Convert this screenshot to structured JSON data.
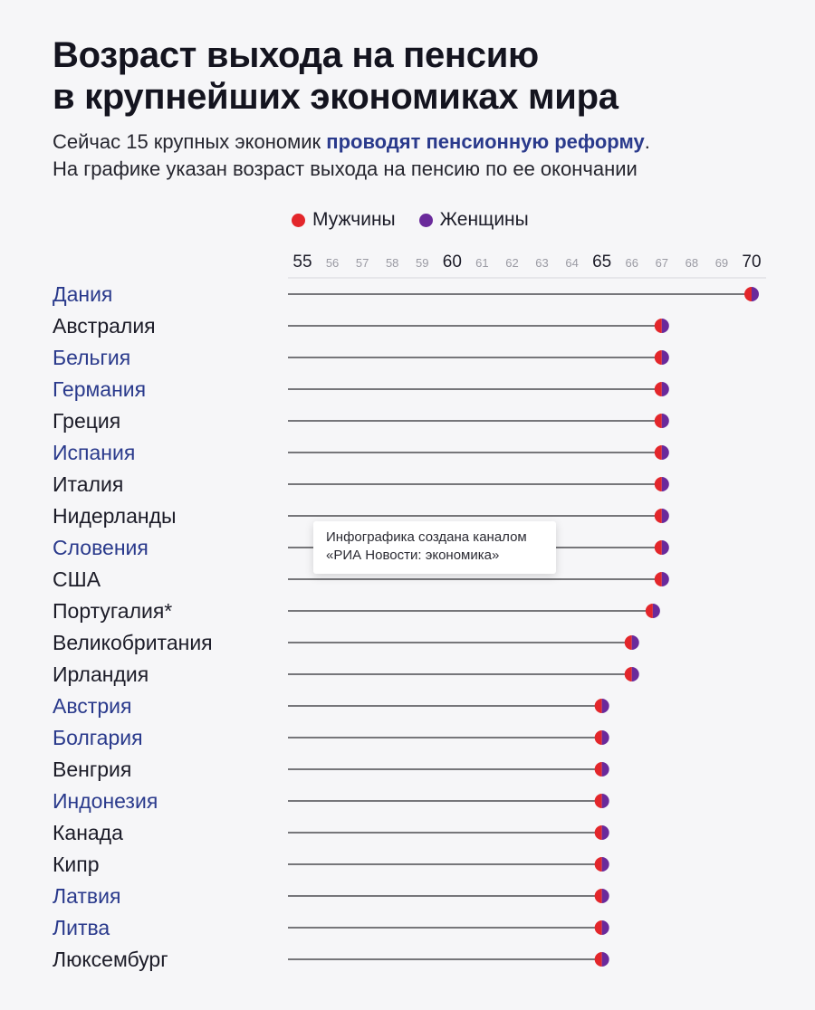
{
  "header": {
    "title_line1": "Возраст выхода на пенсию",
    "title_line2": "в крупнейших экономиках мира",
    "subtitle_pre": "Сейчас 15 крупных экономик ",
    "subtitle_link": "проводят пенсионную реформу",
    "subtitle_post": ".",
    "subtitle_line2": "На графике указан возраст выхода на пенсию по ее окончании"
  },
  "legend": {
    "men": "Мужчины",
    "women": "Женщины"
  },
  "colors": {
    "men": "#e3262b",
    "women": "#6a2a9b",
    "highlight_label": "#2a3a8c",
    "normal_label": "#1c1c28",
    "line": "#2a2a2e"
  },
  "tooltip": {
    "line1": "Инфографика создана каналом",
    "line2": "«РИА Новости: экономика»"
  },
  "chart_data": {
    "type": "dot",
    "title": "Возраст выхода на пенсию в крупнейших экономиках мира",
    "xlim": [
      55,
      70
    ],
    "x_ticks": [
      55,
      56,
      57,
      58,
      59,
      60,
      61,
      62,
      63,
      64,
      65,
      66,
      67,
      68,
      69,
      70
    ],
    "x_major_ticks": [
      55,
      60,
      65,
      70
    ],
    "series": [
      {
        "name": "Мужчины"
      },
      {
        "name": "Женщины"
      }
    ],
    "categories": [
      {
        "name": "Дания",
        "men": 70,
        "women": 70,
        "highlight": true
      },
      {
        "name": "Австралия",
        "men": 67,
        "women": 67,
        "highlight": false
      },
      {
        "name": "Бельгия",
        "men": 67,
        "women": 67,
        "highlight": true
      },
      {
        "name": "Германия",
        "men": 67,
        "women": 67,
        "highlight": true
      },
      {
        "name": "Греция",
        "men": 67,
        "women": 67,
        "highlight": false
      },
      {
        "name": "Испания",
        "men": 67,
        "women": 67,
        "highlight": true
      },
      {
        "name": "Италия",
        "men": 67,
        "women": 67,
        "highlight": false
      },
      {
        "name": "Нидерланды",
        "men": 67,
        "women": 67,
        "highlight": false
      },
      {
        "name": "Словения",
        "men": 67,
        "women": 67,
        "highlight": true
      },
      {
        "name": "США",
        "men": 67,
        "women": 67,
        "highlight": false
      },
      {
        "name": "Португалия*",
        "men": 66.7,
        "women": 66.7,
        "highlight": false
      },
      {
        "name": "Великобритания",
        "men": 66,
        "women": 66,
        "highlight": false
      },
      {
        "name": "Ирландия",
        "men": 66,
        "women": 66,
        "highlight": false
      },
      {
        "name": "Австрия",
        "men": 65,
        "women": 65,
        "highlight": true
      },
      {
        "name": "Болгария",
        "men": 65,
        "women": 65,
        "highlight": true
      },
      {
        "name": "Венгрия",
        "men": 65,
        "women": 65,
        "highlight": false
      },
      {
        "name": "Индонезия",
        "men": 65,
        "women": 65,
        "highlight": true
      },
      {
        "name": "Канада",
        "men": 65,
        "women": 65,
        "highlight": false
      },
      {
        "name": "Кипр",
        "men": 65,
        "women": 65,
        "highlight": false
      },
      {
        "name": "Латвия",
        "men": 65,
        "women": 65,
        "highlight": true
      },
      {
        "name": "Литва",
        "men": 65,
        "women": 65,
        "highlight": true
      },
      {
        "name": "Люксембург",
        "men": 65,
        "women": 65,
        "highlight": false
      }
    ]
  }
}
